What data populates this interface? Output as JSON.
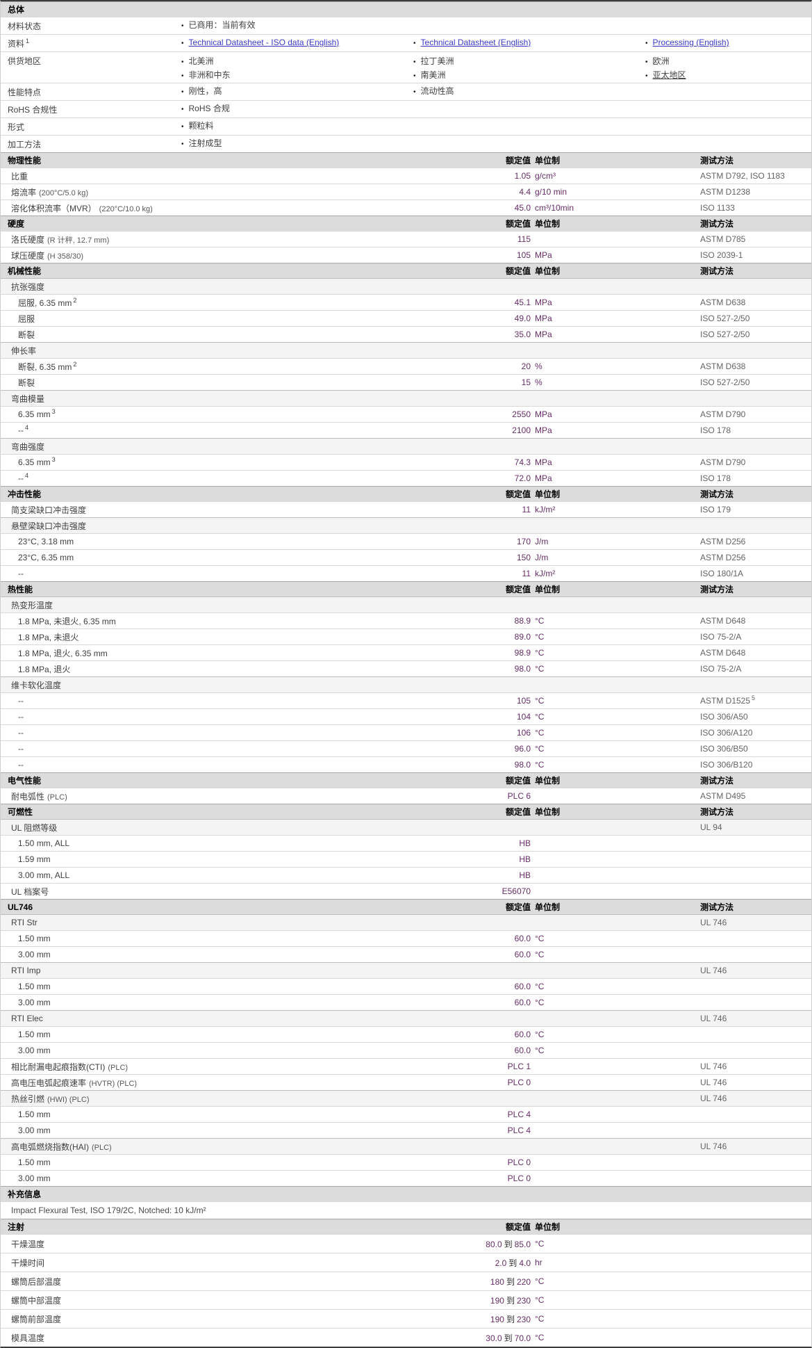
{
  "colors": {
    "value_text": "#662d66",
    "link": "#3a3ac6",
    "section_header_bg": "#dcdcdc",
    "label_text": "#404040",
    "method_text": "#646464"
  },
  "columns": {
    "value_header": "额定值",
    "unit_header": "单位制",
    "method_header": "测试方法"
  },
  "sections": [
    {
      "title": "总体",
      "cols": "none",
      "rows": [
        {
          "type": "bullets",
          "label": "材料状态",
          "cols": [
            [
              {
                "text": "已商用：当前有效"
              }
            ]
          ]
        },
        {
          "type": "bullets",
          "label": "资料",
          "sup": "1",
          "cols": [
            [
              {
                "text": "Technical Datasheet - ISO data (English)",
                "link": true
              }
            ],
            [
              {
                "text": "Technical Datasheet (English)",
                "link": true
              }
            ],
            [
              {
                "text": "Processing (English)",
                "link": true
              }
            ]
          ]
        },
        {
          "type": "bullets",
          "label": "供货地区",
          "tall": true,
          "cols": [
            [
              {
                "text": "北美洲"
              },
              {
                "text": "非洲和中东"
              }
            ],
            [
              {
                "text": "拉丁美洲"
              },
              {
                "text": "南美洲"
              }
            ],
            [
              {
                "text": "欧洲"
              },
              {
                "text": "亚太地区",
                "underline": true
              }
            ]
          ]
        },
        {
          "type": "bullets",
          "label": "性能特点",
          "cols": [
            [
              {
                "text": "刚性，高"
              }
            ],
            [
              {
                "text": "流动性高"
              }
            ]
          ]
        },
        {
          "type": "bullets",
          "label": "RoHS 合规性",
          "cols": [
            [
              {
                "text": "RoHS 合规"
              }
            ]
          ]
        },
        {
          "type": "bullets",
          "label": "形式",
          "cols": [
            [
              {
                "text": "颗粒料"
              }
            ]
          ]
        },
        {
          "type": "bullets",
          "label": "加工方法",
          "cols": [
            [
              {
                "text": "注射成型"
              }
            ]
          ]
        }
      ]
    },
    {
      "title": "物理性能",
      "cols": "full",
      "rows": [
        {
          "type": "prop",
          "label": "比重",
          "value": "1.05",
          "unit": "g/cm³",
          "method": "ASTM D792, ISO 1183"
        },
        {
          "type": "prop",
          "label": "熔流率",
          "note": "(200°C/5.0 kg)",
          "value": "4.4",
          "unit": "g/10 min",
          "method": "ASTM D1238"
        },
        {
          "type": "prop",
          "label": "溶化体积流率（MVR）",
          "note": "(220°C/10.0 kg)",
          "value": "45.0",
          "unit": "cm³/10min",
          "method": "ISO 1133"
        }
      ]
    },
    {
      "title": "硬度",
      "cols": "full",
      "rows": [
        {
          "type": "prop",
          "label": "洛氏硬度",
          "note": "(R 计秤, 12.7 mm)",
          "value": "115",
          "unit": "",
          "method": "ASTM D785"
        },
        {
          "type": "prop",
          "label": "球压硬度",
          "note": "(H 358/30)",
          "value": "105",
          "unit": "MPa",
          "method": "ISO 2039-1"
        }
      ]
    },
    {
      "title": "机械性能",
      "cols": "full",
      "rows": [
        {
          "type": "sub",
          "label": "抗张强度"
        },
        {
          "type": "prop2",
          "label": "屈服, 6.35 mm",
          "sup": "2",
          "value": "45.1",
          "unit": "MPa",
          "method": "ASTM D638"
        },
        {
          "type": "prop2",
          "label": "屈服",
          "value": "49.0",
          "unit": "MPa",
          "method": "ISO 527-2/50"
        },
        {
          "type": "prop2",
          "label": "断裂",
          "value": "35.0",
          "unit": "MPa",
          "method": "ISO 527-2/50"
        },
        {
          "type": "sub",
          "label": "伸长率"
        },
        {
          "type": "prop2",
          "label": "断裂, 6.35 mm",
          "sup": "2",
          "value": "20",
          "unit": "%",
          "method": "ASTM D638"
        },
        {
          "type": "prop2",
          "label": "断裂",
          "value": "15",
          "unit": "%",
          "method": "ISO 527-2/50"
        },
        {
          "type": "sub",
          "label": "弯曲模量"
        },
        {
          "type": "prop2",
          "label": "6.35 mm",
          "sup": "3",
          "value": "2550",
          "unit": "MPa",
          "method": "ASTM D790"
        },
        {
          "type": "prop2",
          "label": "--",
          "sup": "4",
          "value": "2100",
          "unit": "MPa",
          "method": "ISO 178"
        },
        {
          "type": "sub",
          "label": "弯曲强度"
        },
        {
          "type": "prop2",
          "label": "6.35 mm",
          "sup": "3",
          "value": "74.3",
          "unit": "MPa",
          "method": "ASTM D790"
        },
        {
          "type": "prop2",
          "label": "--",
          "sup": "4",
          "value": "72.0",
          "unit": "MPa",
          "method": "ISO 178"
        }
      ]
    },
    {
      "title": "冲击性能",
      "cols": "full",
      "rows": [
        {
          "type": "prop",
          "label": "简支梁缺口冲击强度",
          "value": "11",
          "unit": "kJ/m²",
          "method": "ISO 179"
        },
        {
          "type": "sub",
          "label": "悬壁梁缺口冲击强度"
        },
        {
          "type": "prop2",
          "label": "23°C, 3.18 mm",
          "value": "170",
          "unit": "J/m",
          "method": "ASTM D256"
        },
        {
          "type": "prop2",
          "label": "23°C, 6.35 mm",
          "value": "150",
          "unit": "J/m",
          "method": "ASTM D256"
        },
        {
          "type": "prop2",
          "label": "--",
          "value": "11",
          "unit": "kJ/m²",
          "method": "ISO 180/1A"
        }
      ]
    },
    {
      "title": "热性能",
      "cols": "full",
      "rows": [
        {
          "type": "sub",
          "label": "热变形温度"
        },
        {
          "type": "prop2",
          "label": "1.8 MPa, 未退火, 6.35 mm",
          "value": "88.9",
          "unit": "°C",
          "method": "ASTM D648"
        },
        {
          "type": "prop2",
          "label": "1.8 MPa, 未退火",
          "value": "89.0",
          "unit": "°C",
          "method": "ISO 75-2/A"
        },
        {
          "type": "prop2",
          "label": "1.8 MPa, 退火, 6.35 mm",
          "value": "98.9",
          "unit": "°C",
          "method": "ASTM D648"
        },
        {
          "type": "prop2",
          "label": "1.8 MPa, 退火",
          "value": "98.0",
          "unit": "°C",
          "method": "ISO 75-2/A"
        },
        {
          "type": "sub",
          "label": "维卡软化温度"
        },
        {
          "type": "prop2",
          "label": "--",
          "value": "105",
          "unit": "°C",
          "method": "ASTM D1525",
          "method_sup": "5"
        },
        {
          "type": "prop2",
          "label": "--",
          "value": "104",
          "unit": "°C",
          "method": "ISO 306/A50"
        },
        {
          "type": "prop2",
          "label": "--",
          "value": "106",
          "unit": "°C",
          "method": "ISO 306/A120"
        },
        {
          "type": "prop2",
          "label": "--",
          "value": "96.0",
          "unit": "°C",
          "method": "ISO 306/B50"
        },
        {
          "type": "prop2",
          "label": "--",
          "value": "98.0",
          "unit": "°C",
          "method": "ISO 306/B120"
        }
      ]
    },
    {
      "title": "电气性能",
      "cols": "full",
      "rows": [
        {
          "type": "prop",
          "label": "耐电弧性",
          "note": "(PLC)",
          "value": "PLC 6",
          "unit": "",
          "method": "ASTM D495"
        }
      ]
    },
    {
      "title": "可燃性",
      "cols": "full",
      "rows": [
        {
          "type": "sub",
          "label": "UL 阻燃等级",
          "method": "UL 94"
        },
        {
          "type": "prop2",
          "label": "1.50 mm, ALL",
          "value": "HB",
          "unit": "",
          "method": ""
        },
        {
          "type": "prop2",
          "label": "1.59 mm",
          "value": "HB",
          "unit": "",
          "method": ""
        },
        {
          "type": "prop2",
          "label": "3.00 mm, ALL",
          "value": "HB",
          "unit": "",
          "method": ""
        },
        {
          "type": "prop",
          "label": "UL 档案号",
          "value": "E56070",
          "unit": "",
          "method": ""
        }
      ]
    },
    {
      "title": "UL746",
      "cols": "full",
      "rows": [
        {
          "type": "sub",
          "label": "RTI Str",
          "method": "UL 746"
        },
        {
          "type": "prop2",
          "label": "1.50 mm",
          "value": "60.0",
          "unit": "°C",
          "method": ""
        },
        {
          "type": "prop2",
          "label": "3.00 mm",
          "value": "60.0",
          "unit": "°C",
          "method": ""
        },
        {
          "type": "sub",
          "label": "RTI Imp",
          "method": "UL 746"
        },
        {
          "type": "prop2",
          "label": "1.50 mm",
          "value": "60.0",
          "unit": "°C",
          "method": ""
        },
        {
          "type": "prop2",
          "label": "3.00 mm",
          "value": "60.0",
          "unit": "°C",
          "method": ""
        },
        {
          "type": "sub",
          "label": "RTI Elec",
          "method": "UL 746"
        },
        {
          "type": "prop2",
          "label": "1.50 mm",
          "value": "60.0",
          "unit": "°C",
          "method": ""
        },
        {
          "type": "prop2",
          "label": "3.00 mm",
          "value": "60.0",
          "unit": "°C",
          "method": ""
        },
        {
          "type": "prop",
          "label": "相比耐漏电起痕指数(CTI)",
          "note": "(PLC)",
          "value": "PLC 1",
          "unit": "",
          "method": "UL 746"
        },
        {
          "type": "prop",
          "label": "高电压电弧起痕速率",
          "note": "(HVTR) (PLC)",
          "value": "PLC 0",
          "unit": "",
          "method": "UL 746"
        },
        {
          "type": "sub",
          "label": "热丝引燃",
          "note": "(HWI) (PLC)",
          "method": "UL 746"
        },
        {
          "type": "prop2",
          "label": "1.50 mm",
          "value": "PLC 4",
          "unit": "",
          "method": ""
        },
        {
          "type": "prop2",
          "label": "3.00 mm",
          "value": "PLC 4",
          "unit": "",
          "method": ""
        },
        {
          "type": "sub",
          "label": "高电弧燃烧指数(HAI)",
          "note": "(PLC)",
          "method": "UL 746"
        },
        {
          "type": "prop2",
          "label": "1.50 mm",
          "value": "PLC 0",
          "unit": "",
          "method": ""
        },
        {
          "type": "prop2",
          "label": "3.00 mm",
          "value": "PLC 0",
          "unit": "",
          "method": ""
        }
      ]
    },
    {
      "title": "补充信息",
      "cols": "none",
      "rows": [
        {
          "type": "text",
          "label": "Impact Flexural Test, ISO 179/2C, Notched: 10 kJ/m²"
        }
      ]
    },
    {
      "title": "注射",
      "cols": "value",
      "rows": [
        {
          "type": "prop",
          "label": "干燥温度",
          "value": "80.0 到 85.0",
          "unit": "°C",
          "inj": true
        },
        {
          "type": "prop",
          "label": "干燥时间",
          "value": "2.0 到 4.0",
          "unit": "hr",
          "inj": true
        },
        {
          "type": "prop",
          "label": "螺筒后部温度",
          "value": "180 到 220",
          "unit": "°C",
          "inj": true
        },
        {
          "type": "prop",
          "label": "螺筒中部温度",
          "value": "190 到 230",
          "unit": "°C",
          "inj": true
        },
        {
          "type": "prop",
          "label": "螺筒前部温度",
          "value": "190 到 230",
          "unit": "°C",
          "inj": true
        },
        {
          "type": "prop",
          "label": "模具温度",
          "value": "30.0 到 70.0",
          "unit": "°C",
          "inj": true
        }
      ]
    }
  ]
}
